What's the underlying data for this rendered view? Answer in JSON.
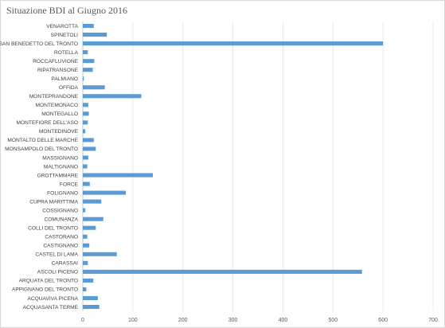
{
  "chart_data": {
    "type": "bar",
    "orientation": "horizontal",
    "title": "Situazione BDI al Giugno 2016",
    "categories": [
      "VENAROTTA",
      "SPINETOLI",
      "SAN BENEDETTO DEL TRONTO",
      "ROTELLA",
      "ROCCAFLUVIONE",
      "RIPATRANSONE",
      "PALMIANO",
      "OFFIDA",
      "MONTEPRANDONE",
      "MONTEMONACO",
      "MONTEGALLO",
      "MONTEFIORE DELL'ASO",
      "MONTEDINOVE",
      "MONTALTO DELLE MARCHE",
      "MONSAMPOLO DEL TRONTO",
      "MASSIGNANO",
      "MALTIGNANO",
      "GROTTAMMARE",
      "FORCE",
      "FOLIGNANO",
      "CUPRA MARITTIMA",
      "COSSIGNANO",
      "COMUNANZA",
      "COLLI DEL TRONTO",
      "CASTORANO",
      "CASTIGNANO",
      "CASTEL DI LAMA",
      "CARASSAI",
      "ASCOLI PICENO",
      "ARQUATA DEL TRONTO",
      "APPIGNANO DEL TRONTO",
      "ACQUAVIVA PICENA",
      "ACQUASANTA TERME"
    ],
    "values": [
      22,
      48,
      600,
      10,
      23,
      20,
      2,
      44,
      117,
      11,
      12,
      10,
      5,
      22,
      26,
      11,
      9,
      140,
      14,
      86,
      37,
      5,
      41,
      26,
      9,
      13,
      68,
      10,
      558,
      21,
      7,
      30,
      33
    ],
    "xlim": [
      0,
      700
    ],
    "xticks": [
      "0",
      "100",
      "200",
      "300",
      "400",
      "500",
      "600",
      "700"
    ],
    "grid": "vertical",
    "legend": "none",
    "bar_color": "#5b9bd5"
  }
}
